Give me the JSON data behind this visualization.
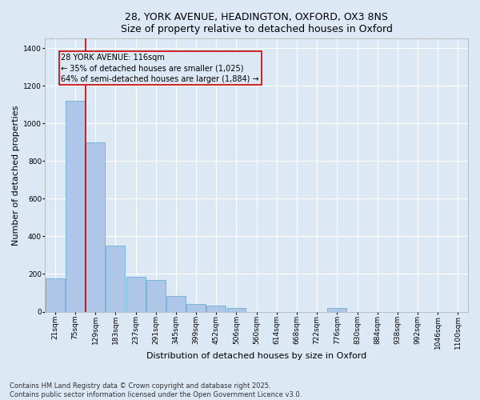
{
  "title_line1": "28, YORK AVENUE, HEADINGTON, OXFORD, OX3 8NS",
  "title_line2": "Size of property relative to detached houses in Oxford",
  "xlabel": "Distribution of detached houses by size in Oxford",
  "ylabel": "Number of detached properties",
  "bar_color": "#aec6e8",
  "bar_edge_color": "#6baed6",
  "background_color": "#dce9f5",
  "grid_color": "#ffffff",
  "vline_color": "#cc0000",
  "annotation_text": "28 YORK AVENUE: 116sqm\n← 35% of detached houses are smaller (1,025)\n64% of semi-detached houses are larger (1,884) →",
  "annotation_box_color": "#cc0000",
  "categories": [
    "21sqm",
    "75sqm",
    "129sqm",
    "183sqm",
    "237sqm",
    "291sqm",
    "345sqm",
    "399sqm",
    "452sqm",
    "506sqm",
    "560sqm",
    "614sqm",
    "668sqm",
    "722sqm",
    "776sqm",
    "830sqm",
    "884sqm",
    "938sqm",
    "992sqm",
    "1046sqm",
    "1100sqm"
  ],
  "values": [
    175,
    1120,
    900,
    350,
    185,
    170,
    85,
    40,
    30,
    20,
    0,
    0,
    0,
    0,
    20,
    0,
    0,
    0,
    0,
    0,
    0
  ],
  "ylim": [
    0,
    1450
  ],
  "yticks": [
    0,
    200,
    400,
    600,
    800,
    1000,
    1200,
    1400
  ],
  "vline_x_index": 1.5,
  "footer_text": "Contains HM Land Registry data © Crown copyright and database right 2025.\nContains public sector information licensed under the Open Government Licence v3.0.",
  "title_fontsize": 9,
  "axis_label_fontsize": 8,
  "tick_fontsize": 6.5,
  "footer_fontsize": 6,
  "annotation_fontsize": 7
}
